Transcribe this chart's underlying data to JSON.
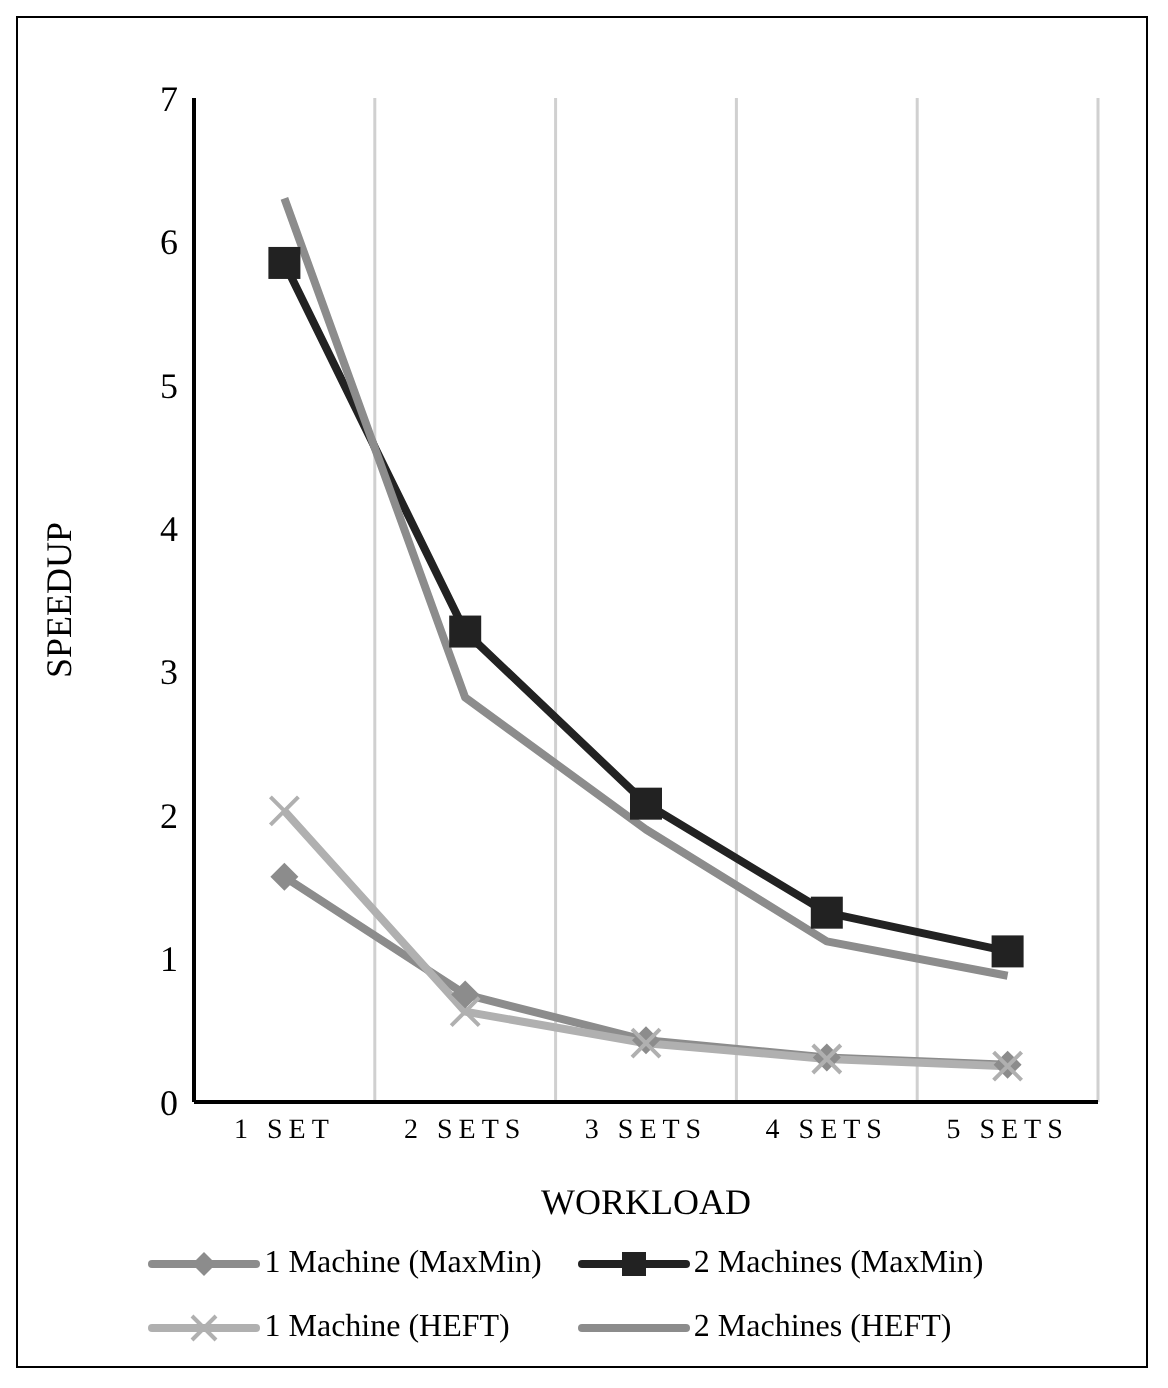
{
  "chart_data": {
    "type": "line",
    "xlabel": "WORKLOAD",
    "ylabel": "SPEEDUP",
    "categories": [
      "1 SET",
      "2 SETS",
      "3 SETS",
      "4 SETS",
      "5 SETS"
    ],
    "ylim": [
      0,
      7
    ],
    "yticks": [
      0,
      1,
      2,
      3,
      4,
      5,
      6,
      7
    ],
    "grid": "x",
    "legend": "bottom",
    "line_style": "solid",
    "series": [
      {
        "name": "1 Machine (MaxMin)",
        "color": "#8c8c8c",
        "marker": "diamond",
        "values": [
          1.57,
          0.75,
          0.43,
          0.31,
          0.26
        ]
      },
      {
        "name": "2 Machines (MaxMin)",
        "color": "#222222",
        "marker": "square",
        "values": [
          5.85,
          3.28,
          2.08,
          1.32,
          1.05
        ]
      },
      {
        "name": "1 Machine (HEFT)",
        "color": "#b0b0b0",
        "marker": "cross",
        "values": [
          2.03,
          0.63,
          0.41,
          0.3,
          0.25
        ]
      },
      {
        "name": "2 Machines (HEFT)",
        "color": "#8c8c8c",
        "marker": "none",
        "values": [
          6.3,
          2.82,
          1.9,
          1.12,
          0.88
        ]
      }
    ]
  }
}
